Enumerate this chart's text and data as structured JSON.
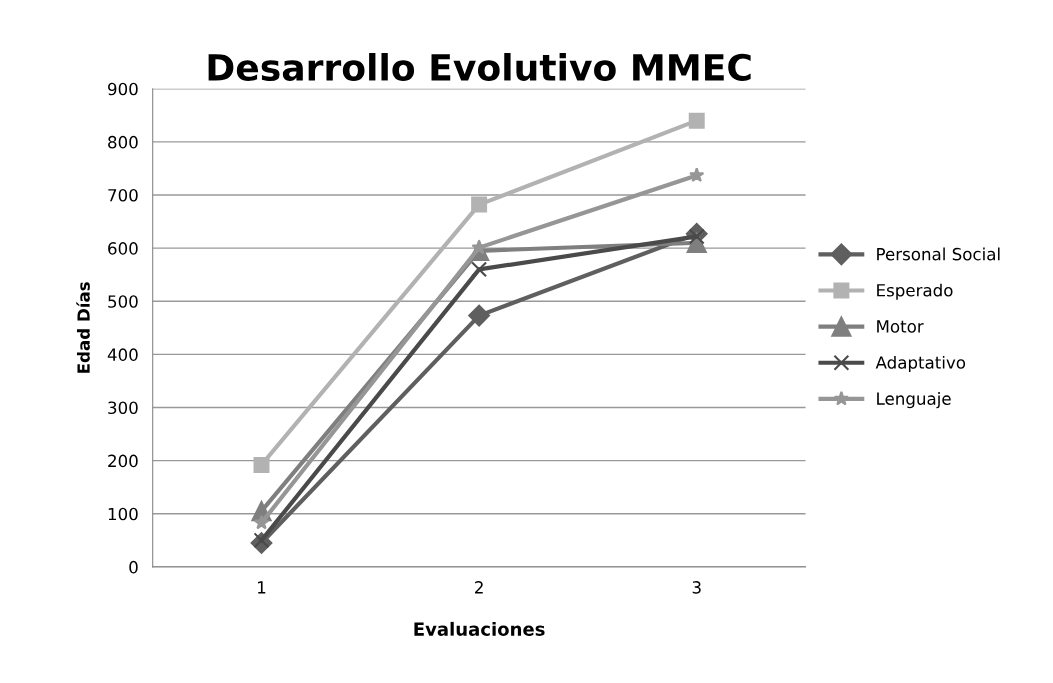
{
  "chart_data": {
    "type": "line",
    "title": "Desarrollo Evolutivo MMEC",
    "xlabel": "Evaluaciones",
    "ylabel": "Edad Días",
    "categories": [
      "1",
      "2",
      "3"
    ],
    "series": [
      {
        "name": "Personal Social",
        "color": "#5f5f5f",
        "marker": "diamond",
        "values": [
          45,
          473,
          627
        ]
      },
      {
        "name": "Esperado",
        "color": "#b2b2b2",
        "marker": "square",
        "values": [
          192,
          682,
          840
        ]
      },
      {
        "name": "Motor",
        "color": "#7f7f7f",
        "marker": "triangle",
        "values": [
          105,
          595,
          610
        ]
      },
      {
        "name": "Adaptativo",
        "color": "#4a4a4a",
        "marker": "cross",
        "values": [
          50,
          560,
          622
        ]
      },
      {
        "name": "Lenguaje",
        "color": "#969696",
        "marker": "star",
        "values": [
          83,
          601,
          737
        ]
      }
    ],
    "ylim": [
      0,
      900
    ],
    "yticks": [
      0,
      100,
      200,
      300,
      400,
      500,
      600,
      700,
      800,
      900
    ],
    "grid": "y",
    "legend": "right",
    "line_style": "solid"
  }
}
